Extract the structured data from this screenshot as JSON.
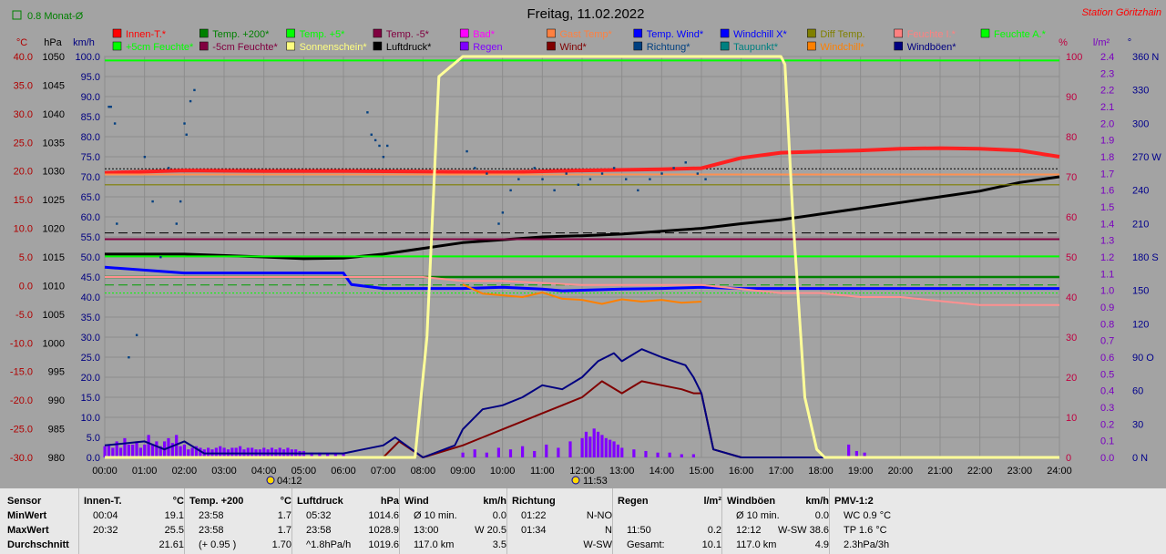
{
  "chart_data": {
    "type": "line",
    "title": "Freitag, 11.02.2022",
    "station": "Station Göritzhain",
    "monthly_avg_label": "0.8 Monat-Ø",
    "x_ticks": [
      "00:00",
      "01:00",
      "02:00",
      "03:00",
      "04:00",
      "05:00",
      "06:00",
      "07:00",
      "08:00",
      "09:00",
      "10:00",
      "11:00",
      "12:00",
      "13:00",
      "14:00",
      "15:00",
      "16:00",
      "17:00",
      "18:00",
      "19:00",
      "20:00",
      "21:00",
      "22:00",
      "23:00",
      "24:00"
    ],
    "sunrise": "04:12",
    "sunset": "11:53",
    "axes": {
      "temp_c": {
        "label": "°C",
        "ticks": [
          "40.0",
          "35.0",
          "30.0",
          "25.0",
          "20.0",
          "15.0",
          "10.0",
          "5.0",
          "0.0",
          "-5.0",
          "-10.0",
          "-15.0",
          "-20.0",
          "-25.0",
          "-30.0"
        ],
        "range": [
          -30,
          40
        ],
        "color": "#b00000"
      },
      "pressure_hpa": {
        "label": "hPa",
        "ticks": [
          "1050",
          "1045",
          "1040",
          "1035",
          "1030",
          "1025",
          "1020",
          "1015",
          "1010",
          "1005",
          "1000",
          "995",
          "990",
          "985",
          "980"
        ],
        "range": [
          980,
          1050
        ],
        "color": "#000000"
      },
      "wind_kmh": {
        "label": "km/h",
        "ticks": [
          "100.0",
          "95.0",
          "90.0",
          "85.0",
          "80.0",
          "75.0",
          "70.0",
          "65.0",
          "60.0",
          "55.0",
          "50.0",
          "45.0",
          "40.0",
          "35.0",
          "30.0",
          "25.0",
          "20.0",
          "15.0",
          "10.0",
          "5.0",
          "0.0"
        ],
        "range": [
          0,
          100
        ],
        "color": "#000080"
      },
      "humidity_pct": {
        "label": "%",
        "ticks": [
          "100",
          "90",
          "80",
          "70",
          "60",
          "50",
          "40",
          "30",
          "20",
          "10",
          "0"
        ],
        "range": [
          0,
          100
        ],
        "color": "#c00040"
      },
      "rain_lm2": {
        "label": "l/m²",
        "ticks": [
          "2.4",
          "2.3",
          "2.2",
          "2.1",
          "2.0",
          "1.9",
          "1.8",
          "1.7",
          "1.6",
          "1.5",
          "1.4",
          "1.3",
          "1.2",
          "1.1",
          "1.0",
          "0.9",
          "0.8",
          "0.7",
          "0.6",
          "0.5",
          "0.4",
          "0.3",
          "0.2",
          "0.1",
          "0.0"
        ],
        "range": [
          0,
          2.5
        ],
        "color": "#7a00c0"
      },
      "direction": {
        "label": "°",
        "ticks": [
          "360 N",
          "330",
          "300",
          "270 W",
          "240",
          "210",
          "180 S",
          "150",
          "120",
          "90 O",
          "60",
          "30",
          "0 N"
        ],
        "range": [
          0,
          360
        ],
        "color": "#00008b"
      }
    },
    "legend": [
      {
        "name": "Innen-T.*",
        "color": "#ff0000"
      },
      {
        "name": "Temp. +200*",
        "color": "#008000"
      },
      {
        "name": "Temp. +5*",
        "color": "#00ff00"
      },
      {
        "name": "Temp. -5*",
        "color": "#800040"
      },
      {
        "name": "Bad*",
        "color": "#ff00ff"
      },
      {
        "name": "Gast Temp*",
        "color": "#ff8040"
      },
      {
        "name": "Temp. Wind*",
        "color": "#0000ff"
      },
      {
        "name": "Windchill X*",
        "color": "#0000ff"
      },
      {
        "name": "Diff Temp.",
        "color": "#808000"
      },
      {
        "name": "Feuchte I.*",
        "color": "#ff8080"
      },
      {
        "name": "Feuchte A.*",
        "color": "#00ff00"
      },
      {
        "name": "+5cm Feuchte*",
        "color": "#00ff00"
      },
      {
        "name": "-5cm Feuchte*",
        "color": "#800040"
      },
      {
        "name": "Sonnenschein*",
        "color": "#ffff80"
      },
      {
        "name": "Luftdruck*",
        "color": "#000000"
      },
      {
        "name": "Regen",
        "color": "#8000ff"
      },
      {
        "name": "Wind*",
        "color": "#800000"
      },
      {
        "name": "Richtung*",
        "color": "#004080"
      },
      {
        "name": "Taupunkt*",
        "color": "#008080"
      },
      {
        "name": "Windchill*",
        "color": "#ff8000"
      },
      {
        "name": "Windböen*",
        "color": "#000080"
      }
    ],
    "series": [
      {
        "name": "Innen-T.*",
        "axis": "temp_c",
        "color": "#ff2020",
        "x": [
          0,
          2,
          4,
          6,
          8,
          10,
          12,
          14,
          15,
          16,
          17,
          18,
          19,
          20,
          21,
          22,
          23,
          24
        ],
        "values": [
          19.7,
          20.1,
          20.0,
          20.0,
          19.9,
          19.8,
          20.1,
          20.3,
          20.5,
          22.3,
          23.2,
          23.4,
          23.6,
          23.9,
          24.0,
          23.9,
          23.6,
          22.5
        ]
      },
      {
        "name": "Luftdruck*",
        "axis": "pressure_hpa",
        "color": "#000000",
        "x": [
          0,
          2,
          4,
          5,
          6,
          7,
          8,
          9,
          10,
          11,
          12,
          13,
          14,
          15,
          16,
          17,
          18,
          19,
          20,
          21,
          22,
          23,
          24
        ],
        "values": [
          1015.5,
          1015.5,
          1015.0,
          1014.7,
          1014.8,
          1015.5,
          1016.5,
          1017.5,
          1018.0,
          1018.5,
          1018.7,
          1019.0,
          1019.5,
          1020.0,
          1020.8,
          1021.5,
          1022.5,
          1023.5,
          1024.5,
          1025.5,
          1026.5,
          1028.0,
          1029.0
        ]
      },
      {
        "name": "Temp. +5*",
        "axis": "temp_c",
        "color": "#00ff00",
        "x": [
          0,
          24
        ],
        "values": [
          5.1,
          5.1
        ]
      },
      {
        "name": "Temp. -5*",
        "axis": "temp_c",
        "color": "#800040",
        "x": [
          0,
          24
        ],
        "values": [
          8.1,
          8.1
        ]
      },
      {
        "name": "Temp. +200*",
        "axis": "temp_c",
        "color": "#008000",
        "x": [
          0,
          24
        ],
        "values": [
          1.5,
          1.5
        ]
      },
      {
        "name": "Diff Temp.",
        "axis": "temp_c",
        "color": "#808000",
        "x": [
          0,
          24
        ],
        "values": [
          17.6,
          17.6
        ]
      },
      {
        "name": "Feuchte A.*",
        "axis": "humidity_pct",
        "color": "#00ff00",
        "x": [
          0,
          24
        ],
        "values": [
          99,
          99
        ]
      },
      {
        "name": "Gast Temp*",
        "axis": "temp_c",
        "color": "#ff9050",
        "x": [
          0,
          24
        ],
        "values": [
          19.4,
          19.4
        ]
      },
      {
        "name": "Temp. Wind*",
        "axis": "temp_c",
        "color": "#0000ff",
        "x": [
          0,
          2,
          6,
          6.2,
          7,
          8,
          9,
          10,
          11,
          11.5,
          12,
          13,
          14,
          15,
          16,
          18,
          20,
          24
        ],
        "values": [
          3.2,
          2.2,
          2.2,
          0.2,
          -0.5,
          -0.5,
          -0.5,
          -0.3,
          -0.6,
          -0.9,
          -0.8,
          -0.6,
          -0.5,
          -0.3,
          -0.5,
          -0.5,
          -0.5,
          -0.5
        ]
      },
      {
        "name": "Feuchte I.*",
        "axis": "humidity_pct",
        "color": "#ff9090",
        "x": [
          0,
          2,
          6,
          8,
          9,
          10,
          12,
          14,
          15,
          16,
          17,
          18,
          19,
          20,
          21,
          22,
          23,
          24
        ],
        "values": [
          45,
          45,
          45,
          45,
          44,
          44,
          43,
          43,
          43,
          42,
          41,
          41,
          40,
          40,
          39,
          38,
          38,
          38
        ]
      },
      {
        "name": "Windchill*",
        "axis": "temp_c",
        "color": "#ff8000",
        "x": [
          9.0,
          9.5,
          10,
          10.5,
          11,
          11.5,
          12,
          12.5,
          13,
          13.5,
          14,
          14.5,
          15
        ],
        "values": [
          0.2,
          -1.4,
          -1.7,
          -2.0,
          -1.2,
          -2.3,
          -2.5,
          -3.2,
          -2.4,
          -2.8,
          -2.5,
          -3.0,
          -2.8
        ]
      },
      {
        "name": "Wind*",
        "axis": "wind_kmh",
        "color": "#800000",
        "x": [
          0,
          6,
          7,
          7.4,
          8,
          9,
          9.5,
          10,
          10.5,
          11,
          11.5,
          12,
          12.5,
          13,
          13.5,
          14,
          14.5,
          14.8,
          15,
          15.3,
          16,
          24
        ],
        "values": [
          0,
          0,
          0,
          4,
          0,
          3,
          5,
          7,
          9,
          11,
          13,
          15,
          19,
          16,
          19,
          18,
          17,
          16,
          16,
          2,
          0,
          0
        ]
      },
      {
        "name": "Windböen*",
        "axis": "wind_kmh",
        "color": "#000080",
        "x": [
          0,
          1,
          1.5,
          2,
          2.5,
          6,
          6.5,
          7,
          7.3,
          8,
          8.8,
          9,
          9.5,
          10,
          10.5,
          11,
          11.5,
          12,
          12.4,
          12.8,
          13,
          13.5,
          14,
          14.3,
          14.6,
          14.8,
          15,
          15.3,
          16,
          24
        ],
        "values": [
          3,
          4,
          2,
          4,
          1,
          1,
          2,
          3,
          5,
          0,
          3,
          7,
          12,
          13,
          15,
          18,
          17,
          20,
          24,
          26,
          24,
          27,
          25,
          24,
          23,
          20,
          16,
          2,
          0,
          0
        ]
      },
      {
        "name": "Sonnenschein*",
        "axis": "humidity_pct",
        "color": "#ffff99",
        "x": [
          0,
          7.8,
          8.1,
          8.4,
          9,
          17,
          17.1,
          17.3,
          17.6,
          17.9,
          18.1,
          24
        ],
        "values": [
          0,
          0,
          30,
          95,
          100,
          100,
          98,
          60,
          15,
          2,
          0,
          0
        ]
      },
      {
        "name": "Richtung*",
        "axis": "direction",
        "color": "#004080",
        "type": "scatter",
        "x": [
          0.1,
          0.15,
          0.25,
          0.3,
          0.6,
          0.8,
          1.0,
          1.2,
          1.4,
          1.6,
          1.8,
          1.9,
          2.0,
          2.05,
          2.15,
          2.25,
          6.6,
          6.7,
          6.8,
          6.9,
          7.0,
          7.1,
          9.1,
          9.3,
          9.6,
          9.9,
          10.0,
          10.2,
          10.4,
          10.8,
          11.0,
          11.3,
          11.6,
          11.9,
          12.2,
          12.5,
          12.8,
          13.1,
          13.4,
          13.7,
          14.0,
          14.3,
          14.6,
          14.9,
          15.1
        ],
        "values": [
          315,
          315,
          300,
          210,
          90,
          110,
          270,
          230,
          180,
          260,
          210,
          230,
          300,
          290,
          320,
          330,
          310,
          290,
          285,
          280,
          270,
          280,
          275,
          260,
          255,
          210,
          220,
          240,
          250,
          260,
          250,
          240,
          255,
          245,
          250,
          255,
          260,
          250,
          240,
          250,
          255,
          260,
          265,
          255,
          250
        ]
      }
    ],
    "rain_bars": {
      "x": [
        0.0,
        0.1,
        0.2,
        0.3,
        0.4,
        0.5,
        0.6,
        0.7,
        0.8,
        0.9,
        1.0,
        1.1,
        1.2,
        1.3,
        1.4,
        1.5,
        1.6,
        1.7,
        1.8,
        1.9,
        2.0,
        2.1,
        2.2,
        2.3,
        2.4,
        2.5,
        2.6,
        2.7,
        2.8,
        2.9,
        3.0,
        3.1,
        3.2,
        3.3,
        3.4,
        3.5,
        3.6,
        3.7,
        3.8,
        3.9,
        4.0,
        4.1,
        4.2,
        4.3,
        4.4,
        4.5,
        4.6,
        4.7,
        4.8,
        4.9,
        5.0,
        5.2,
        5.4,
        5.6,
        5.8,
        6.0,
        9.0,
        9.3,
        9.6,
        9.9,
        10.2,
        10.5,
        10.8,
        11.1,
        11.4,
        11.7,
        12.0,
        12.1,
        12.2,
        12.3,
        12.4,
        12.5,
        12.6,
        12.7,
        12.8,
        12.9,
        13.0,
        13.3,
        13.6,
        13.9,
        14.2,
        14.5,
        14.8,
        18.7,
        18.9,
        19.1
      ],
      "values": [
        0.07,
        0.08,
        0.06,
        0.1,
        0.06,
        0.12,
        0.08,
        0.08,
        0.1,
        0.06,
        0.08,
        0.14,
        0.08,
        0.1,
        0.07,
        0.1,
        0.12,
        0.09,
        0.14,
        0.07,
        0.08,
        0.05,
        0.06,
        0.07,
        0.06,
        0.05,
        0.06,
        0.05,
        0.06,
        0.07,
        0.06,
        0.05,
        0.06,
        0.06,
        0.07,
        0.05,
        0.06,
        0.06,
        0.05,
        0.05,
        0.06,
        0.05,
        0.06,
        0.05,
        0.06,
        0.05,
        0.06,
        0.05,
        0.05,
        0.04,
        0.04,
        0.03,
        0.03,
        0.02,
        0.02,
        0.02,
        0.03,
        0.05,
        0.03,
        0.06,
        0.05,
        0.07,
        0.04,
        0.08,
        0.06,
        0.1,
        0.12,
        0.16,
        0.13,
        0.18,
        0.16,
        0.14,
        0.12,
        0.11,
        0.1,
        0.08,
        0.06,
        0.05,
        0.04,
        0.03,
        0.03,
        0.02,
        0.02,
        0.08,
        0.04,
        0.03
      ]
    },
    "reference_lines": [
      {
        "axis": "humidity_pct",
        "value": 72,
        "style": "dotted",
        "color": "#000000"
      },
      {
        "axis": "humidity_pct",
        "value": 56,
        "style": "dashed",
        "color": "#000000"
      },
      {
        "axis": "humidity_pct",
        "value": 43,
        "style": "dashed",
        "color": "#00a000"
      },
      {
        "axis": "humidity_pct",
        "value": 41,
        "style": "dotted",
        "color": "#00ff00"
      }
    ],
    "grid": true
  },
  "footer": {
    "row_labels": [
      "Sensor",
      "MinWert",
      "MaxWert",
      "Durchschnitt"
    ],
    "groups": [
      {
        "title": "Innen-T.",
        "unit": "°C",
        "rows": [
          [
            "00:04",
            "19.1"
          ],
          [
            "20:32",
            "25.5"
          ],
          [
            "",
            "21.61"
          ]
        ]
      },
      {
        "title": "Temp. +200",
        "unit": "°C",
        "rows": [
          [
            "23:58",
            "1.7"
          ],
          [
            "23:58",
            "1.7"
          ],
          [
            "(+ 0.95 )",
            "1.70"
          ]
        ]
      },
      {
        "title": "Luftdruck",
        "unit": "hPa",
        "rows": [
          [
            "05:32",
            "1014.6"
          ],
          [
            "23:58",
            "1028.9"
          ],
          [
            "^1.8hPa/h",
            "1019.6"
          ]
        ]
      },
      {
        "title": "Wind",
        "unit": "km/h",
        "rows": [
          [
            "Ø 10 min.",
            "0.0"
          ],
          [
            "13:00",
            "W 20.5"
          ],
          [
            "117.0 km",
            "3.5"
          ]
        ]
      },
      {
        "title": "Richtung",
        "unit": "",
        "rows": [
          [
            "01:22",
            "N-NO"
          ],
          [
            "01:34",
            "N"
          ],
          [
            "",
            "W-SW"
          ]
        ]
      },
      {
        "title": "Regen",
        "unit": "l/m²",
        "rows": [
          [
            "",
            ""
          ],
          [
            "11:50",
            "0.2"
          ],
          [
            "Gesamt:",
            "10.1"
          ]
        ]
      },
      {
        "title": "Windböen",
        "unit": "km/h",
        "rows": [
          [
            "Ø 10 min.",
            "0.0"
          ],
          [
            "12:12",
            "W-SW 38.6"
          ],
          [
            "117.0 km",
            "4.9"
          ]
        ]
      },
      {
        "title": "PMV-1:2",
        "unit": "",
        "rows": [
          [
            "WC 0.9 °C",
            ""
          ],
          [
            "TP 1.6 °C",
            ""
          ],
          [
            "2.3hPa/3h",
            ""
          ]
        ]
      }
    ]
  }
}
